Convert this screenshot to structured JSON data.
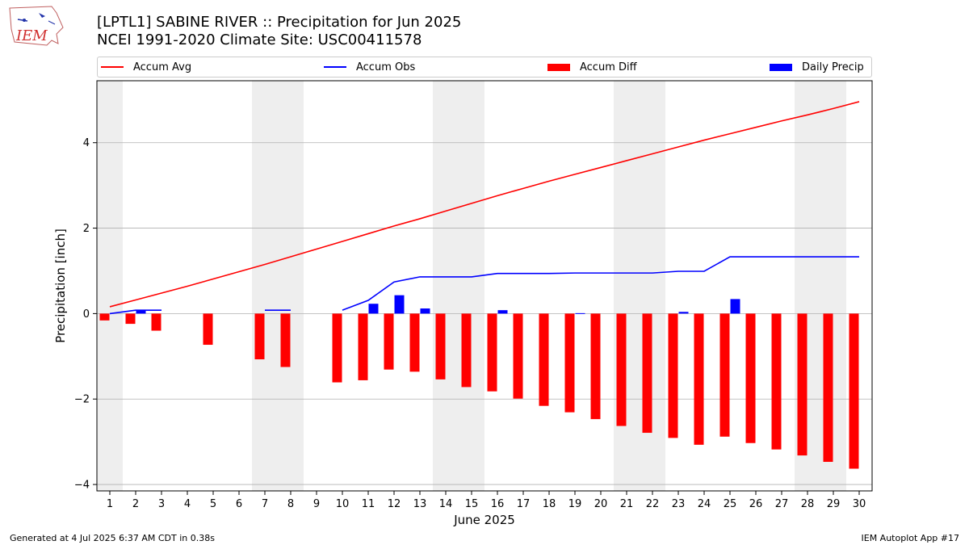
{
  "header": {
    "logo_text": "IEM",
    "title_line1": "[LPTL1] SABINE RIVER :: Precipitation for Jun 2025",
    "title_line2": "NCEI 1991-2020 Climate Site: USC00411578"
  },
  "footer": {
    "left": "Generated at 4 Jul 2025 6:37 AM CDT in 0.38s",
    "right": "IEM Autoplot App #17"
  },
  "colors": {
    "avg": "#ff0000",
    "obs": "#0000ff",
    "diff": "#ff0000",
    "daily": "#0000ff",
    "weekend_band": "#eeeeee",
    "grid": "#b0b0b0"
  },
  "chart_data": {
    "type": "bar",
    "xlabel": "June 2025",
    "ylabel": "Precipitation [inch]",
    "ylim": [
      -4.15,
      5.45
    ],
    "yticks": [
      -4,
      -2,
      0,
      2,
      4
    ],
    "ytick_labels": [
      "−4",
      "−2",
      "0",
      "2",
      "4"
    ],
    "x": [
      1,
      2,
      3,
      4,
      5,
      6,
      7,
      8,
      9,
      10,
      11,
      12,
      13,
      14,
      15,
      16,
      17,
      18,
      19,
      20,
      21,
      22,
      23,
      24,
      25,
      26,
      27,
      28,
      29,
      30
    ],
    "weekend_bands": [
      [
        0.5,
        1.5
      ],
      [
        6.5,
        8.5
      ],
      [
        13.5,
        15.5
      ],
      [
        20.5,
        22.5
      ],
      [
        27.5,
        29.5
      ]
    ],
    "grid": "horizontal",
    "legend_position": "top",
    "series": [
      {
        "name": "Accum Avg",
        "kind": "line",
        "values": [
          0.16,
          0.32,
          0.48,
          0.64,
          0.81,
          0.98,
          1.15,
          1.33,
          1.51,
          1.69,
          1.87,
          2.05,
          2.22,
          2.4,
          2.58,
          2.76,
          2.93,
          3.1,
          3.26,
          3.42,
          3.58,
          3.74,
          3.9,
          4.06,
          4.21,
          4.36,
          4.51,
          4.65,
          4.8,
          4.96
        ]
      },
      {
        "name": "Accum Obs",
        "kind": "line",
        "values": [
          0.0,
          0.08,
          0.08,
          null,
          null,
          null,
          0.08,
          0.08,
          null,
          0.08,
          0.31,
          0.74,
          0.86,
          0.86,
          0.86,
          0.94,
          0.94,
          0.94,
          0.95,
          0.95,
          0.95,
          0.95,
          0.99,
          0.99,
          1.33,
          1.33,
          1.33,
          1.33,
          1.33,
          1.33
        ]
      },
      {
        "name": "Accum Diff",
        "kind": "bar",
        "values": [
          -0.16,
          -0.24,
          -0.4,
          null,
          -0.73,
          null,
          -1.07,
          -1.25,
          null,
          -1.61,
          -1.56,
          -1.31,
          -1.36,
          -1.54,
          -1.72,
          -1.82,
          -1.99,
          -2.16,
          -2.31,
          -2.47,
          -2.63,
          -2.79,
          -2.91,
          -3.07,
          -2.88,
          -3.03,
          -3.18,
          -3.32,
          -3.47,
          -3.63
        ]
      },
      {
        "name": "Daily Precip",
        "kind": "bar",
        "values": [
          0.0,
          0.08,
          0.0,
          0.0,
          0.0,
          0.0,
          0.0,
          0.0,
          0.0,
          0.0,
          0.23,
          0.43,
          0.12,
          0.0,
          0.0,
          0.08,
          0.0,
          0.0,
          0.01,
          0.0,
          0.0,
          0.0,
          0.04,
          0.0,
          0.34,
          0.0,
          0.0,
          0.0,
          0.0,
          0.0
        ]
      }
    ]
  }
}
